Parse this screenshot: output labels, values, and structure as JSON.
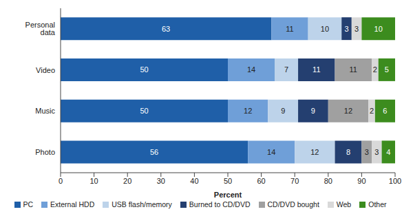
{
  "chart_data": {
    "type": "bar",
    "orientation": "horizontal",
    "stacked": true,
    "data_labels": true,
    "grid": false,
    "legend": "bottom",
    "x_label": "Percent",
    "categories": [
      "Personal data",
      "Video",
      "Music",
      "Photo"
    ],
    "xlim": [
      0,
      100
    ],
    "xticks": [
      0,
      10,
      20,
      30,
      40,
      50,
      60,
      70,
      80,
      90,
      100
    ],
    "series": [
      {
        "name": "PC",
        "color": "#1f5fa8",
        "values": [
          63,
          50,
          50,
          56
        ]
      },
      {
        "name": "External HDD",
        "color": "#6f9fd8",
        "values": [
          11,
          14,
          12,
          14
        ]
      },
      {
        "name": "USB flash/memory",
        "color": "#bdd3ea",
        "values": [
          10,
          7,
          9,
          12
        ]
      },
      {
        "name": "Burned to CD/DVD",
        "color": "#243f70",
        "values": [
          3,
          11,
          9,
          8
        ]
      },
      {
        "name": "CD/DVD bought",
        "color": "#a0a0a0",
        "values": [
          null,
          11,
          12,
          3
        ]
      },
      {
        "name": "Web",
        "color": "#d9d9d9",
        "values": [
          3,
          2,
          2,
          3
        ]
      },
      {
        "name": "Other",
        "color": "#3c8c1e",
        "values": [
          10,
          5,
          6,
          4
        ]
      }
    ]
  }
}
